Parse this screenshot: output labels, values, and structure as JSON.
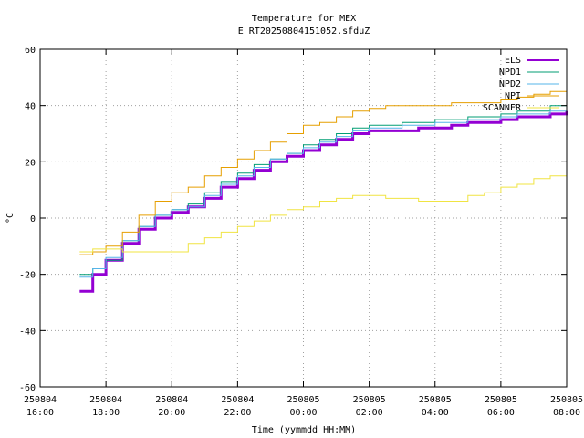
{
  "chart_data": {
    "type": "line",
    "title": "Temperature for MEX",
    "subtitle": "E_RT20250804151052.sfduZ",
    "xlabel": "Time (yymmdd HH:MM)",
    "ylabel": "°C",
    "ylim": [
      -60,
      60
    ],
    "yticks": [
      -60,
      -40,
      -20,
      0,
      20,
      40,
      60
    ],
    "xlim": [
      16,
      32
    ],
    "xticks": [
      {
        "x": 16,
        "date": "250804",
        "time": "16:00"
      },
      {
        "x": 18,
        "date": "250804",
        "time": "18:00"
      },
      {
        "x": 20,
        "date": "250804",
        "time": "20:00"
      },
      {
        "x": 22,
        "date": "250804",
        "time": "22:00"
      },
      {
        "x": 24,
        "date": "250805",
        "time": "00:00"
      },
      {
        "x": 26,
        "date": "250805",
        "time": "02:00"
      },
      {
        "x": 28,
        "date": "250805",
        "time": "04:00"
      },
      {
        "x": 30,
        "date": "250805",
        "time": "06:00"
      },
      {
        "x": 32,
        "date": "250805",
        "time": "08:00"
      }
    ],
    "grid": true,
    "legend_position": "top-right",
    "series": [
      {
        "name": "ELS",
        "color": "#9400d3",
        "width": 3,
        "points": [
          [
            17.2,
            -26
          ],
          [
            17.6,
            -20
          ],
          [
            18.0,
            -15
          ],
          [
            18.5,
            -9
          ],
          [
            19.0,
            -4
          ],
          [
            19.5,
            0
          ],
          [
            20.0,
            2
          ],
          [
            20.5,
            4
          ],
          [
            21.0,
            7
          ],
          [
            21.5,
            11
          ],
          [
            22.0,
            14
          ],
          [
            22.5,
            17
          ],
          [
            23.0,
            20
          ],
          [
            23.5,
            22
          ],
          [
            24.0,
            24
          ],
          [
            24.5,
            26
          ],
          [
            25.0,
            28
          ],
          [
            25.5,
            30
          ],
          [
            26.0,
            31
          ],
          [
            26.5,
            31
          ],
          [
            27.0,
            31
          ],
          [
            27.5,
            32
          ],
          [
            28.0,
            32
          ],
          [
            28.5,
            33
          ],
          [
            29.0,
            34
          ],
          [
            29.5,
            34
          ],
          [
            30.0,
            35
          ],
          [
            30.5,
            36
          ],
          [
            31.0,
            36
          ],
          [
            31.5,
            37
          ],
          [
            32.0,
            38
          ]
        ]
      },
      {
        "name": "NPD1",
        "color": "#009e73",
        "width": 1,
        "points": [
          [
            17.2,
            -20
          ],
          [
            17.6,
            -18
          ],
          [
            18.0,
            -15
          ],
          [
            18.5,
            -8
          ],
          [
            19.0,
            -3
          ],
          [
            19.5,
            1
          ],
          [
            20.0,
            3
          ],
          [
            20.5,
            5
          ],
          [
            21.0,
            9
          ],
          [
            21.5,
            13
          ],
          [
            22.0,
            16
          ],
          [
            22.5,
            19
          ],
          [
            23.0,
            21
          ],
          [
            23.5,
            23
          ],
          [
            24.0,
            26
          ],
          [
            24.5,
            28
          ],
          [
            25.0,
            30
          ],
          [
            25.5,
            32
          ],
          [
            26.0,
            33
          ],
          [
            26.5,
            33
          ],
          [
            27.0,
            34
          ],
          [
            27.5,
            34
          ],
          [
            28.0,
            35
          ],
          [
            28.5,
            35
          ],
          [
            29.0,
            36
          ],
          [
            29.5,
            36
          ],
          [
            30.0,
            37
          ],
          [
            30.5,
            38
          ],
          [
            31.0,
            38
          ],
          [
            31.5,
            40
          ],
          [
            32.0,
            42
          ]
        ]
      },
      {
        "name": "NPD2",
        "color": "#56b4e9",
        "width": 1,
        "points": [
          [
            17.2,
            -21
          ],
          [
            17.6,
            -18
          ],
          [
            18.0,
            -14
          ],
          [
            18.5,
            -8
          ],
          [
            19.0,
            -3
          ],
          [
            19.5,
            1
          ],
          [
            20.0,
            3
          ],
          [
            20.5,
            4
          ],
          [
            21.0,
            8
          ],
          [
            21.5,
            12
          ],
          [
            22.0,
            15
          ],
          [
            22.5,
            18
          ],
          [
            23.0,
            21
          ],
          [
            23.5,
            23
          ],
          [
            24.0,
            25
          ],
          [
            24.5,
            27
          ],
          [
            25.0,
            29
          ],
          [
            25.5,
            31
          ],
          [
            26.0,
            32
          ],
          [
            26.5,
            32
          ],
          [
            27.0,
            33
          ],
          [
            27.5,
            33
          ],
          [
            28.0,
            34
          ],
          [
            28.5,
            34
          ],
          [
            29.0,
            35
          ],
          [
            29.5,
            35
          ],
          [
            30.0,
            36
          ],
          [
            30.5,
            37
          ],
          [
            31.0,
            37
          ],
          [
            31.5,
            38
          ],
          [
            32.0,
            39
          ]
        ]
      },
      {
        "name": "NPI",
        "color": "#e69f00",
        "width": 1,
        "points": [
          [
            17.2,
            -13
          ],
          [
            17.6,
            -12
          ],
          [
            18.0,
            -10
          ],
          [
            18.5,
            -5
          ],
          [
            19.0,
            1
          ],
          [
            19.5,
            6
          ],
          [
            20.0,
            9
          ],
          [
            20.5,
            11
          ],
          [
            21.0,
            15
          ],
          [
            21.5,
            18
          ],
          [
            22.0,
            21
          ],
          [
            22.5,
            24
          ],
          [
            23.0,
            27
          ],
          [
            23.5,
            30
          ],
          [
            24.0,
            33
          ],
          [
            24.5,
            34
          ],
          [
            25.0,
            36
          ],
          [
            25.5,
            38
          ],
          [
            26.0,
            39
          ],
          [
            26.5,
            40
          ],
          [
            27.0,
            40
          ],
          [
            27.5,
            40
          ],
          [
            28.0,
            40
          ],
          [
            28.5,
            41
          ],
          [
            29.0,
            41
          ],
          [
            29.5,
            41
          ],
          [
            30.0,
            42
          ],
          [
            30.5,
            43
          ],
          [
            31.0,
            44
          ],
          [
            31.5,
            45
          ],
          [
            32.0,
            47
          ]
        ]
      },
      {
        "name": "SCANNER",
        "color": "#f0e442",
        "width": 1,
        "points": [
          [
            17.2,
            -12
          ],
          [
            17.6,
            -11
          ],
          [
            18.0,
            -11
          ],
          [
            18.5,
            -12
          ],
          [
            19.0,
            -12
          ],
          [
            19.5,
            -12
          ],
          [
            20.0,
            -12
          ],
          [
            20.5,
            -9
          ],
          [
            21.0,
            -7
          ],
          [
            21.5,
            -5
          ],
          [
            22.0,
            -3
          ],
          [
            22.5,
            -1
          ],
          [
            23.0,
            1
          ],
          [
            23.5,
            3
          ],
          [
            24.0,
            4
          ],
          [
            24.5,
            6
          ],
          [
            25.0,
            7
          ],
          [
            25.5,
            8
          ],
          [
            26.0,
            8
          ],
          [
            26.5,
            7
          ],
          [
            27.0,
            7
          ],
          [
            27.5,
            6
          ],
          [
            28.0,
            6
          ],
          [
            28.5,
            6
          ],
          [
            29.0,
            8
          ],
          [
            29.5,
            9
          ],
          [
            30.0,
            11
          ],
          [
            30.5,
            12
          ],
          [
            31.0,
            14
          ],
          [
            31.5,
            15
          ],
          [
            32.0,
            16
          ]
        ]
      }
    ]
  }
}
